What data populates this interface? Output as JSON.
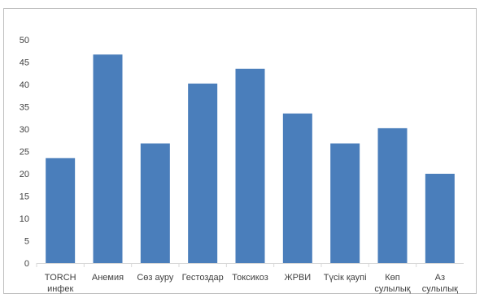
{
  "chart_data": {
    "type": "bar",
    "title": "",
    "xlabel": "",
    "ylabel": "",
    "categories": [
      [
        "TORCH",
        "инфек"
      ],
      [
        "Анемия"
      ],
      [
        "Сөз ауру"
      ],
      [
        "Гестоздар"
      ],
      [
        "Токсикоз"
      ],
      [
        "ЖРВИ"
      ],
      [
        "Түсік қаупі"
      ],
      [
        "Көп",
        "сулылық"
      ],
      [
        "Аз",
        "сулылық"
      ]
    ],
    "values": [
      23.5,
      46.7,
      26.8,
      40.2,
      43.5,
      33.5,
      26.8,
      30.2,
      20.0
    ],
    "ylim": [
      0,
      50
    ],
    "yticks": [
      0,
      5,
      10,
      15,
      20,
      25,
      30,
      35,
      40,
      45,
      50
    ],
    "grid": false,
    "legend": "none",
    "bar_color": "#4a7ebb"
  }
}
